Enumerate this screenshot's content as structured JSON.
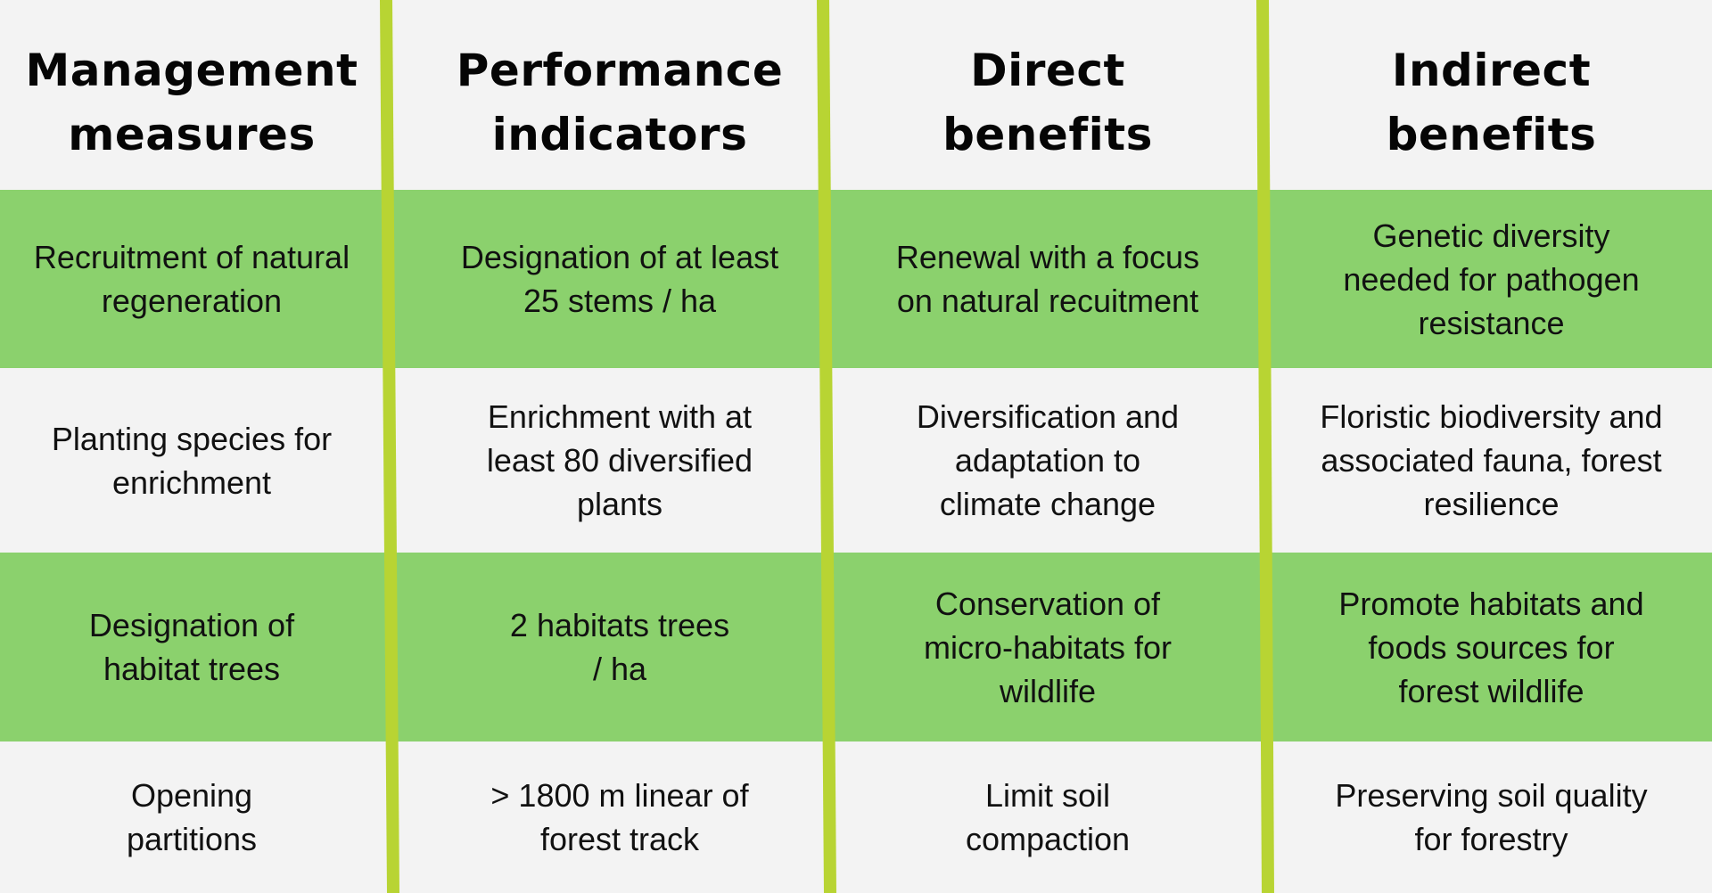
{
  "table": {
    "headers": [
      "Management\nmeasures",
      "Performance\nindicators",
      "Direct\nbenefits",
      "Indirect\nbenefits"
    ],
    "rows": [
      [
        "Recruitment of natural\nregeneration",
        "Designation of at least\n25 stems / ha",
        "Renewal with a focus\non natural recuitment",
        "Genetic diversity\nneeded for pathogen\nresistance"
      ],
      [
        "Planting species for\nenrichment",
        "Enrichment with at\nleast 80 diversified\nplants",
        "Diversification and\nadaptation to\nclimate change",
        "Floristic biodiversity and\nassociated fauna, forest\nresilience"
      ],
      [
        "Designation of\nhabitat trees",
        "2 habitats trees\n/ ha",
        "Conservation of\nmicro-habitats for\nwildlife",
        "Promote habitats and\nfoods sources for\nforest wildlife"
      ],
      [
        "Opening\npartitions",
        "> 1800 m linear of\nforest track",
        "Limit soil\ncompaction",
        "Preserving soil quality\nfor forestry"
      ]
    ]
  },
  "colors": {
    "background": "#f3f3f3",
    "row_highlight": "#8bd16d",
    "divider": "#b8d433",
    "text": "#111111"
  }
}
